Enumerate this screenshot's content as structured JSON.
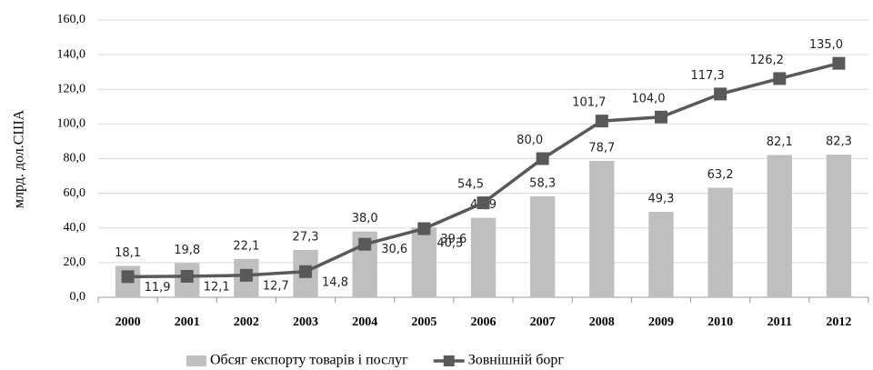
{
  "chart_data": {
    "type": "combo",
    "y_label": "млрд. дол.США",
    "categories": [
      "2000",
      "2001",
      "2002",
      "2003",
      "2004",
      "2005",
      "2006",
      "2007",
      "2008",
      "2009",
      "2010",
      "2011",
      "2012"
    ],
    "series": [
      {
        "name": "Обсяг експорту товарів і послуг",
        "type": "bar",
        "color": "#bfbfbf",
        "values": [
          18.1,
          19.8,
          22.1,
          27.3,
          38.0,
          40.3,
          45.9,
          58.3,
          78.7,
          49.3,
          63.2,
          82.1,
          82.3
        ],
        "value_labels": [
          "18,1",
          "19,8",
          "22,1",
          "27,3",
          "38,0",
          "40,3",
          "45,9",
          "58,3",
          "78,7",
          "49,3",
          "63,2",
          "82,1",
          "82,3"
        ]
      },
      {
        "name": "Зовнішній борг",
        "type": "line",
        "color": "#595959",
        "values": [
          11.9,
          12.1,
          12.7,
          14.8,
          30.6,
          39.6,
          54.5,
          80.0,
          101.7,
          104.0,
          117.3,
          126.2,
          135.0
        ],
        "value_labels": [
          "11,9",
          "12,1",
          "12,7",
          "14,8",
          "30,6",
          "39,6",
          "54,5",
          "80,0",
          "101,7",
          "104,0",
          "117,3",
          "126,2",
          "135,0"
        ]
      }
    ],
    "ylim": [
      0,
      160
    ],
    "yticks": [
      {
        "value": 0,
        "label": "0,0"
      },
      {
        "value": 20,
        "label": "20,0"
      },
      {
        "value": 40,
        "label": "40,0"
      },
      {
        "value": 60,
        "label": "60,0"
      },
      {
        "value": 80,
        "label": "80,0"
      },
      {
        "value": 100,
        "label": "100,0"
      },
      {
        "value": 120,
        "label": "120,0"
      },
      {
        "value": 140,
        "label": "140,0"
      },
      {
        "value": 160,
        "label": "160,0"
      }
    ],
    "grid": true,
    "legend": "bottom"
  }
}
